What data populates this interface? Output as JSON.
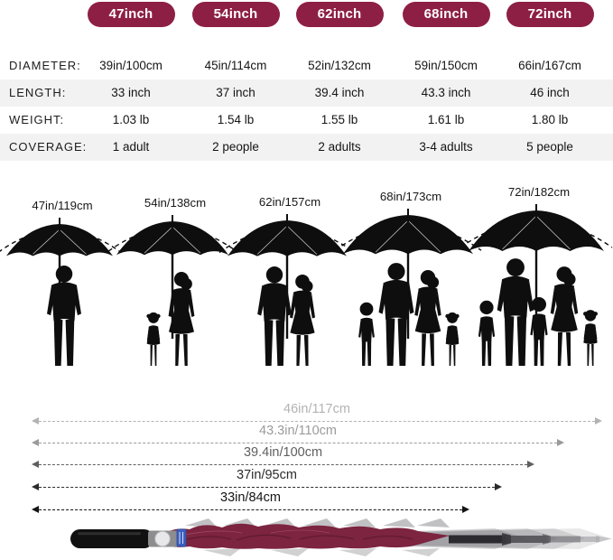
{
  "badges": {
    "accent_color": "#8e1f44",
    "items": [
      {
        "label": "47inch"
      },
      {
        "label": "54inch"
      },
      {
        "label": "62inch"
      },
      {
        "label": "68inch"
      },
      {
        "label": "72inch"
      }
    ]
  },
  "table": {
    "rows": [
      {
        "label": "DIAMETER:",
        "values": [
          "39in/100cm",
          "45in/114cm",
          "52in/132cm",
          "59in/150cm",
          "66in/167cm"
        ]
      },
      {
        "label": "LENGTH:",
        "values": [
          "33 inch",
          "37 inch",
          "39.4 inch",
          "43.3 inch",
          "46 inch"
        ]
      },
      {
        "label": "WEIGHT:",
        "values": [
          "1.03 lb",
          "1.54 lb",
          "1.55 lb",
          "1.61 lb",
          "1.80 lb"
        ]
      },
      {
        "label": "COVERAGE:",
        "values": [
          "1 adult",
          "2 people",
          "2 adults",
          "3-4 adults",
          "5 people"
        ]
      }
    ],
    "alt_row_color": "#f2f2f2"
  },
  "figures": {
    "items": [
      {
        "label": "47in/119cm",
        "people": [
          "man"
        ]
      },
      {
        "label": "54in/138cm",
        "people": [
          "girl",
          "woman"
        ]
      },
      {
        "label": "62in/157cm",
        "people": [
          "man",
          "woman"
        ]
      },
      {
        "label": "68in/173cm",
        "people": [
          "boy",
          "man",
          "woman",
          "girl"
        ]
      },
      {
        "label": "72in/182cm",
        "people": [
          "boy",
          "man",
          "boy",
          "woman",
          "girl"
        ]
      }
    ],
    "silhouette_color": "#0e0e0e"
  },
  "measurements": {
    "items": [
      {
        "label": "46in/117cm",
        "color": "#b3b3b3"
      },
      {
        "label": "43.3in/110cm",
        "color": "#9b9b9b"
      },
      {
        "label": "39.4in/100cm",
        "color": "#5f5f5f"
      },
      {
        "label": "37in/95cm",
        "color": "#2b2b2b"
      },
      {
        "label": "33in/84cm",
        "color": "#141414"
      }
    ]
  },
  "product": {
    "canopy_color": "#7c2440",
    "handle_color": "#111111",
    "runner_color": "#8d8d8f",
    "button_color": "#e8e8ea",
    "tag_color": "#3b5fc0",
    "shaft_color": "#2c2c30",
    "ghost_color": "#6f6f74"
  }
}
